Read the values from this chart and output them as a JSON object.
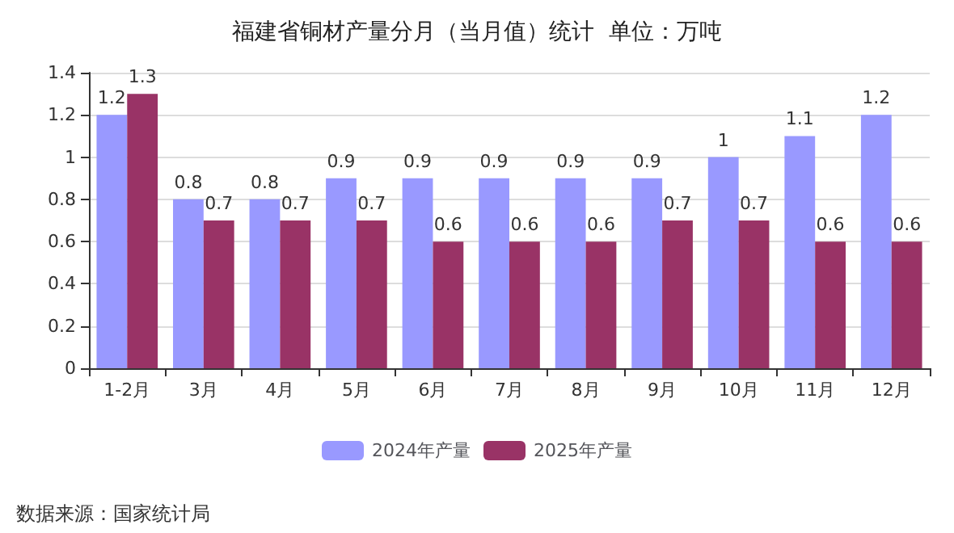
{
  "chart_data": {
    "type": "bar",
    "title": "福建省铜材产量分月（当月值）统计  单位：万吨",
    "categories": [
      "1-2月",
      "3月",
      "4月",
      "5月",
      "6月",
      "7月",
      "8月",
      "9月",
      "10月",
      "11月",
      "12月"
    ],
    "series": [
      {
        "name": "2024年产量",
        "color": "#9999ff",
        "values": [
          1.2,
          0.8,
          0.8,
          0.9,
          0.9,
          0.9,
          0.9,
          0.9,
          1,
          1.1,
          1.2
        ]
      },
      {
        "name": "2025年产量",
        "color": "#993366",
        "values": [
          1.3,
          0.7,
          0.7,
          0.7,
          0.6,
          0.6,
          0.6,
          0.7,
          0.7,
          0.6,
          0.6
        ]
      }
    ],
    "ylim": [
      0,
      1.4
    ],
    "yticks": [
      0,
      0.2,
      0.4,
      0.6,
      0.8,
      1,
      1.2,
      1.4
    ],
    "grid": "y",
    "legend": "bottom",
    "data_labels": true,
    "annotations": [
      "数据来源：国家统计局"
    ]
  }
}
